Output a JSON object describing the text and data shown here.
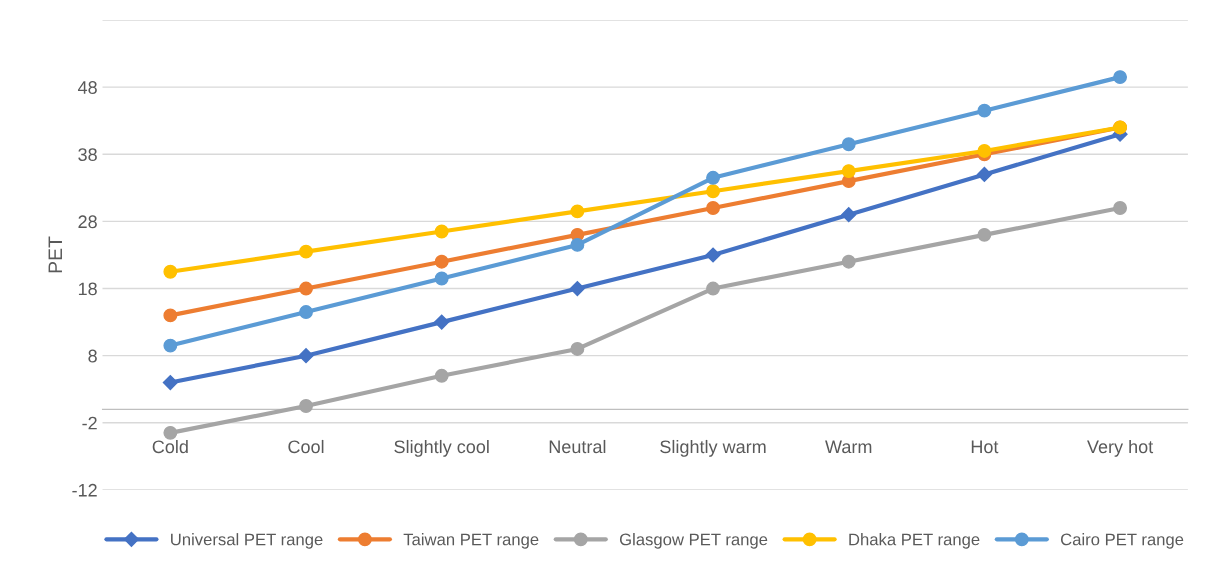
{
  "chart_data": {
    "type": "line",
    "ylabel": "PET",
    "categories": [
      "Cold",
      "Cool",
      "Slightly cool",
      "Neutral",
      "Slightly warm",
      "Warm",
      "Hot",
      "Very hot"
    ],
    "ylim": [
      -12,
      58
    ],
    "yticks": [
      -12,
      -2,
      8,
      18,
      28,
      38,
      48,
      {
        "value": 58,
        "label": null
      }
    ],
    "grid": "y",
    "legend": "bottom",
    "series": [
      {
        "name": "Universal PET range",
        "color": "#4472c4",
        "marker": "diamond",
        "values": [
          4,
          8,
          13,
          18,
          23,
          29,
          35,
          41
        ]
      },
      {
        "name": "Taiwan PET range",
        "color": "#ed7d31",
        "marker": "circle",
        "values": [
          14,
          18,
          22,
          26,
          30,
          34,
          38,
          42
        ]
      },
      {
        "name": "Glasgow PET range",
        "color": "#a5a5a5",
        "marker": "circle",
        "values": [
          -3.5,
          0.5,
          5,
          9,
          18,
          22,
          26,
          30
        ]
      },
      {
        "name": "Dhaka PET range",
        "color": "#ffc000",
        "marker": "circle",
        "values": [
          20.5,
          23.5,
          26.5,
          29.5,
          32.5,
          35.5,
          38.5,
          42
        ]
      },
      {
        "name": "Cairo PET range",
        "color": "#5b9bd5",
        "marker": "circle",
        "values": [
          9.5,
          14.5,
          19.5,
          24.5,
          34.5,
          39.5,
          44.5,
          49.5
        ]
      }
    ]
  }
}
